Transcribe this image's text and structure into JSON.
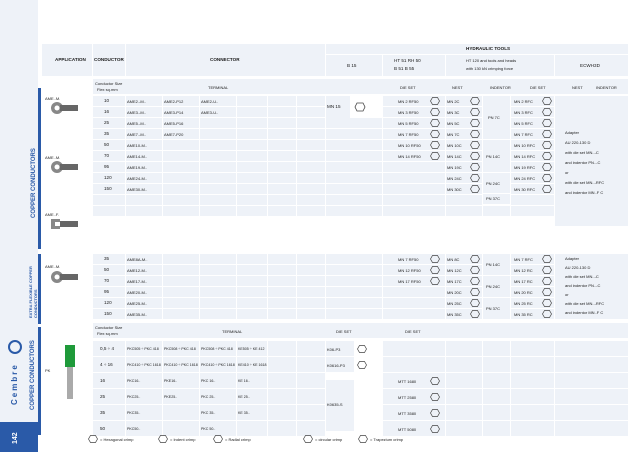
{
  "header": {
    "application": "APPLICATION",
    "conductor": "CONDUCTOR",
    "connector": "CONNECTOR",
    "hydraulic_tools": "HYDRAULIC TOOLS",
    "b15": "B 15",
    "ht51": "HT 51    RH 50",
    "b51": "B 51    B 55",
    "ht120_1": "HT 120 and tools and heads",
    "ht120_2": "with 130 kN crimping force",
    "ecwh3d": "ECWH3D"
  },
  "sub1": {
    "conductor_size": "Conductor Size",
    "flex": "Flex sq.mm",
    "terminal": "TERMINAL",
    "die_set": "DIE SET",
    "nest": "NEST",
    "indentor": "INDENTOR",
    "die_set2": "DIE SET",
    "nest2": "NEST",
    "indentor2": "INDENTOR"
  },
  "section1": {
    "label": "COPPER CONDUCTORS",
    "lug1": "AME..M.",
    "lug2": "AME..M.",
    "lug3": "AME..F.",
    "rows": [
      {
        "size": "10",
        "t1": "AME2.-M..",
        "t2": "AME2-P12",
        "t3": "AME2-U..",
        "die": "MN 2 RF50",
        "nest": "MN 2C",
        "die2": "MN 2 RFC"
      },
      {
        "size": "16",
        "t1": "AME3.-M..",
        "t2": "AME3-P14",
        "t3": "AME3-U..",
        "die": "MN 3 RF50",
        "nest": "MN 3C",
        "die2": "MN 3 RFC"
      },
      {
        "size": "25",
        "t1": "AME5.-M..",
        "t2": "AME5-P16",
        "t3": "",
        "die": "MN 5 RF50",
        "nest": "MN 5C",
        "die2": "MN 5 RFC"
      },
      {
        "size": "35",
        "t1": "AME7.-M..",
        "t2": "AME7-P20",
        "t3": "",
        "die": "MN 7 RF50",
        "nest": "MN 7C",
        "die2": "MN 7 RFC"
      },
      {
        "size": "50",
        "t1": "AME10-M..",
        "t2": "",
        "t3": "",
        "die": "MN 10 RF50",
        "nest": "MN 10C",
        "die2": "MN 10 RFC"
      },
      {
        "size": "70",
        "t1": "AME14-M..",
        "t2": "",
        "t3": "",
        "die": "MN 14 RF50",
        "nest": "MN 14C",
        "die2": "MN 14 RFC"
      },
      {
        "size": "95",
        "t1": "AME19-M..",
        "t2": "",
        "t3": "",
        "die": "",
        "nest": "MN 19C",
        "die2": "MN 19 RFC"
      },
      {
        "size": "120",
        "t1": "AME24-M..",
        "t2": "",
        "t3": "",
        "die": "",
        "nest": "MN 24C",
        "die2": "MN 24 RFC"
      },
      {
        "size": "150",
        "t1": "AME30-M..",
        "t2": "",
        "t3": "",
        "die": "",
        "nest": "MN 30C",
        "die2": "MN 30 RFC"
      },
      {
        "size": "",
        "t1": "",
        "t2": "",
        "t3": "",
        "die": "",
        "nest": "",
        "die2": ""
      },
      {
        "size": "",
        "t1": "",
        "t2": "",
        "t3": "",
        "die": "",
        "nest": "",
        "die2": ""
      }
    ],
    "mn15": "MN 15",
    "ind_pn7c": "PN 7C",
    "ind_pn14c": "PN 14C",
    "ind_pn24c": "PN 24C",
    "ind_pn37c": "PN 37C",
    "adapter": [
      "Adapter",
      "AU 220-130 D",
      "with die set MN..-C",
      "and indentor PN..-C",
      "or",
      "with die set MN..-RFC",
      "and indentor MN..F C"
    ]
  },
  "section2": {
    "label": "EXTRA FLEXIBLE COPPER CONDUCTORS",
    "lug": "AME..M.",
    "rows": [
      {
        "size": "35",
        "t1": "AME8A-M..",
        "die": "MN 7 RF50",
        "nest": "MN 8C",
        "die2": "MN 7 RFC"
      },
      {
        "size": "50",
        "t1": "AME12-M..",
        "die": "MN 12 RF50",
        "nest": "MN 12C",
        "die2": "MN 12 RC"
      },
      {
        "size": "70",
        "t1": "AME17-M..",
        "die": "MN 17 RF50",
        "nest": "MN 17C",
        "die2": "MN 17 RC"
      },
      {
        "size": "95",
        "t1": "AME20-M..",
        "die": "",
        "nest": "MN 20C",
        "die2": "MN 20 RC"
      },
      {
        "size": "120",
        "t1": "AME25-M..",
        "die": "",
        "nest": "MN 25C",
        "die2": "MN 25 RC"
      },
      {
        "size": "150",
        "t1": "AME35-M..",
        "die": "",
        "nest": "MN 35C",
        "die2": "MN 35 RC"
      }
    ],
    "ind_pn14c": "PN 14C",
    "ind_pn24c": "PN 24C",
    "ind_pn37c": "PN 37C",
    "adapter": [
      "Adapter",
      "AU 220-130 D",
      "with die set MN..-C",
      "and indentor PN..-C",
      "or",
      "with die set MN..-RFC",
      "and indentor MN..F C"
    ]
  },
  "section3": {
    "label": "COPPER CONDUCTORS",
    "lug": "PK",
    "conductor_size": "Conductor Size",
    "flex": "Flex sq.mm",
    "terminal": "TERMINAL",
    "die_set": "DIE SET",
    "die_set2": "DIE SET",
    "rows": [
      {
        "size": "0,5 ÷ 4",
        "t1": "PKC505 ÷ PKC 418",
        "t2": "PKC508 ÷ PKC 418",
        "t3": "PKC508 ÷ PKC 418",
        "t4": "KE505 ÷ KE 412",
        "die": "K06-P3"
      },
      {
        "size": "4 ÷ 16",
        "t1": "PKC410 ÷ PKC 1618",
        "t2": "PKC410 ÷ PKC 1618",
        "t3": "PKC410 ÷ PKC 1618",
        "t4": "KE410 ÷ KE 1618",
        "die": "K0616-P3"
      },
      {
        "size": "16",
        "t1": "PKC16..",
        "t2": "PKE16..",
        "t3": "PKC 16..",
        "t4": "KE 16..",
        "die2": "MTT 1680"
      },
      {
        "size": "25",
        "t1": "PKC25..",
        "t2": "PKE25..",
        "t3": "PKC 25..",
        "t4": "KE 25..",
        "die2": "MTT 2580"
      },
      {
        "size": "35",
        "t1": "PKC35..",
        "t2": "",
        "t3": "PKC 35..",
        "t4": "KE 35..",
        "die2": "MTT 3580"
      },
      {
        "size": "50",
        "t1": "PKC50..",
        "t2": "",
        "t3": "PKC 50..",
        "t4": "",
        "die2": "MTT 5080"
      }
    ],
    "k0635": "K0635-S"
  },
  "sidebar": {
    "brand": "Cembre",
    "page_number": "142"
  },
  "legend": {
    "hex": "= Hexagonal crimp",
    "indent": "= Indent crimp",
    "radial": "= Radial crimp",
    "circular": "= circular crimp",
    "trapezium": "= Trapezium crimp"
  },
  "colors": {
    "accent": "#2a5aa8",
    "cell": "#eef2f8",
    "line": "#c9d3e3"
  }
}
